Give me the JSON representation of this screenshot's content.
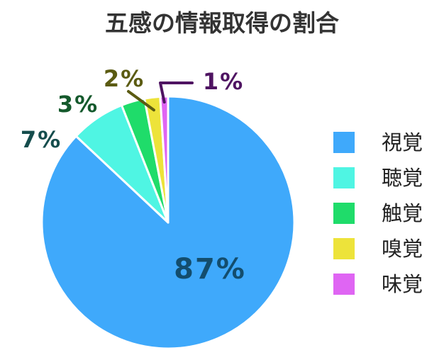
{
  "chart_data": {
    "type": "pie",
    "title": "五感の情報取得の割合",
    "unit": "%",
    "slices": [
      {
        "name": "視覚",
        "value": 87,
        "label": "87%",
        "color": "#3fa9fb",
        "label_color": "#134d6d"
      },
      {
        "name": "聴覚",
        "value": 7,
        "label": "7%",
        "color": "#4ff5e3",
        "label_color": "#154d4d"
      },
      {
        "name": "触覚",
        "value": 3,
        "label": "3%",
        "color": "#1fdc6a",
        "label_color": "#14592c"
      },
      {
        "name": "嗅覚",
        "value": 2,
        "label": "2%",
        "color": "#ede33a",
        "label_color": "#5b5b12"
      },
      {
        "name": "味覚",
        "value": 1,
        "label": "1%",
        "color": "#df65f3",
        "label_color": "#4f1462"
      }
    ],
    "legend_position": "right"
  }
}
